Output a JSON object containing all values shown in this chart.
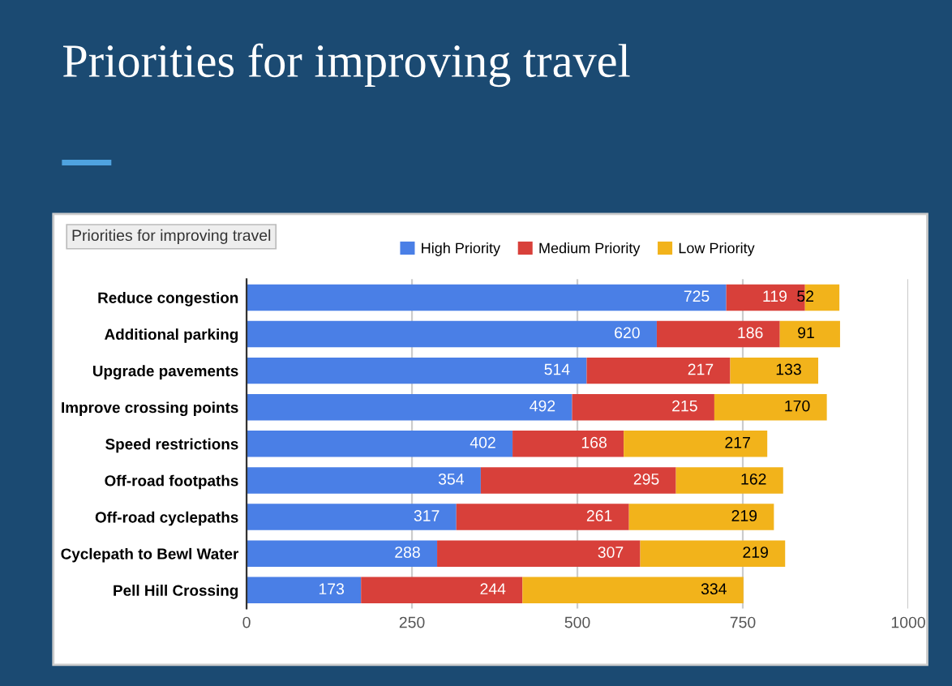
{
  "chart_data": {
    "type": "bar",
    "orientation": "horizontal",
    "stacked": true,
    "title": "Priorities for improving travel",
    "categories": [
      "Reduce congestion",
      "Additional parking",
      "Upgrade pavements",
      "Improve crossing points",
      "Speed restrictions",
      "Off-road footpaths",
      "Off-road cyclepaths",
      "Cyclepath to Bewl Water",
      "Pell Hill Crossing"
    ],
    "series": [
      {
        "name": "High Priority",
        "color": "#4a7fe6",
        "values": [
          725,
          620,
          514,
          492,
          402,
          354,
          317,
          288,
          173
        ]
      },
      {
        "name": "Medium Priority",
        "color": "#d8403a",
        "values": [
          119,
          186,
          217,
          215,
          168,
          295,
          261,
          307,
          244
        ]
      },
      {
        "name": "Low Priority",
        "color": "#f2b31b",
        "values": [
          52,
          91,
          133,
          170,
          217,
          162,
          219,
          219,
          334
        ]
      }
    ],
    "xlim": [
      0,
      1000
    ],
    "xticks": [
      0,
      250,
      500,
      750,
      1000
    ],
    "grid": "x",
    "legend": "top",
    "data_labels": true,
    "annotations": [
      "Priorities for improving travel"
    ]
  }
}
